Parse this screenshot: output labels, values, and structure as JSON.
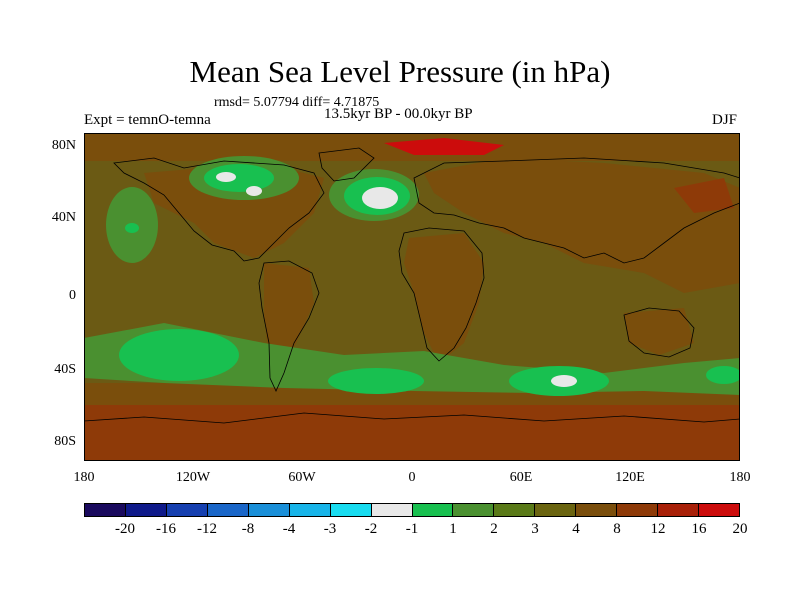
{
  "title": "Mean Sea Level Pressure (in hPa)",
  "stats": "rmsd= 5.07794 diff= 4.71875",
  "experiment": "Expt = temnO-temna",
  "period": "13.5kyr BP - 00.0kyr BP",
  "season": "DJF",
  "lat_labels": [
    "80N",
    "40N",
    "0",
    "40S",
    "80S"
  ],
  "lon_labels": [
    "180",
    "120W",
    "60W",
    "0",
    "60E",
    "120E",
    "180"
  ],
  "colorbar": {
    "colors": [
      "#1a0a5e",
      "#0f1a8a",
      "#1640b0",
      "#1a66c8",
      "#1a8fd8",
      "#18b4e8",
      "#19dcf0",
      "#e8e8e8",
      "#18c050",
      "#4a9030",
      "#5a7a18",
      "#6a6410",
      "#7a4e0c",
      "#8e3a08",
      "#a82008",
      "#cc0c0c"
    ],
    "labels": [
      "-20",
      "-16",
      "-12",
      "-8",
      "-4",
      "-3",
      "-2",
      "-1",
      "1",
      "2",
      "3",
      "4",
      "8",
      "12",
      "16",
      "20"
    ]
  },
  "map": {
    "background": "#6b5a14",
    "land_color": "#7a4e0c",
    "polar_color": "#8e3a08",
    "hot_color": "#cc0c0c",
    "light_green": "#4a9030",
    "green": "#18c050",
    "white": "#e8e8e8"
  }
}
